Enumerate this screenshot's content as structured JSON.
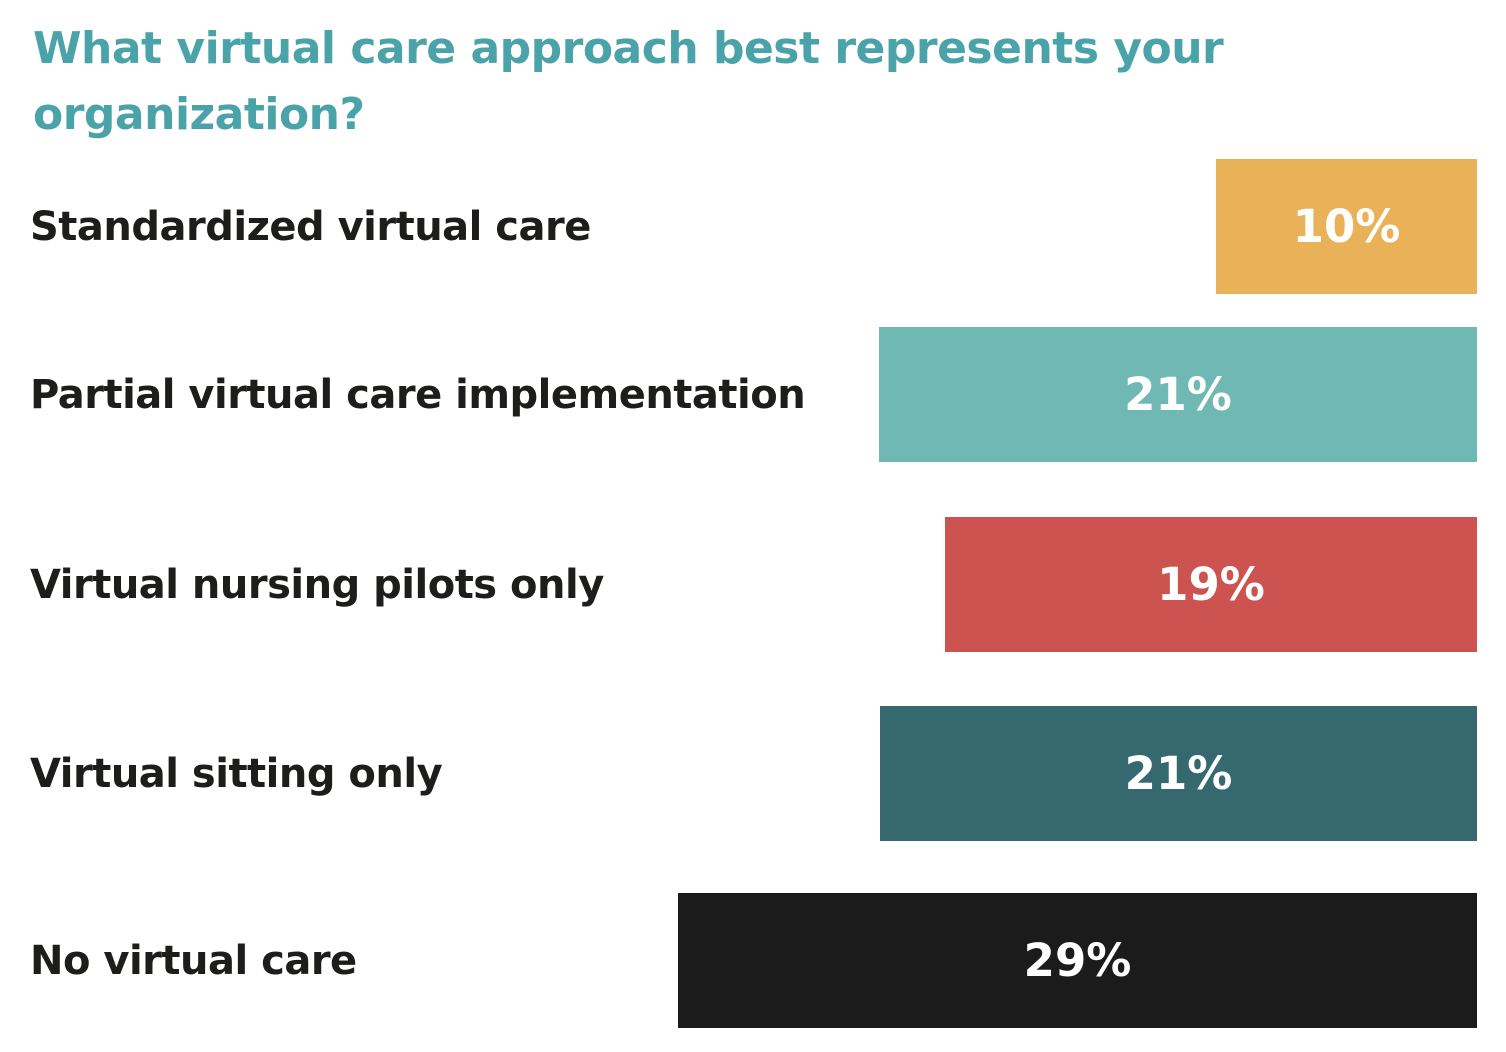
{
  "chart_data": {
    "type": "bar",
    "orientation": "horizontal",
    "alignment": "right-aligned bars, labels at left",
    "title": "What virtual care approach best represents your organization?",
    "categories": [
      "Standardized virtual care",
      "Partial virtual care implementation",
      "Virtual nursing pilots only",
      "Virtual sitting only",
      "No virtual care"
    ],
    "values": [
      10,
      21,
      19,
      21,
      29
    ],
    "value_labels": [
      "10%",
      "21%",
      "19%",
      "21%",
      "29%"
    ],
    "bar_colors": [
      "#E9B158",
      "#6FB8B3",
      "#CD5350",
      "#35696F",
      "#1B1B1B"
    ],
    "xlim": [
      0,
      30
    ],
    "grid": false,
    "legend": false,
    "value_label_position": "centered inside bar",
    "value_label_color": "#FFFFFF"
  },
  "colors": {
    "title_text": "#4AA3A8",
    "category_text": "#1D1D1B",
    "background": "#FFFFFF"
  }
}
